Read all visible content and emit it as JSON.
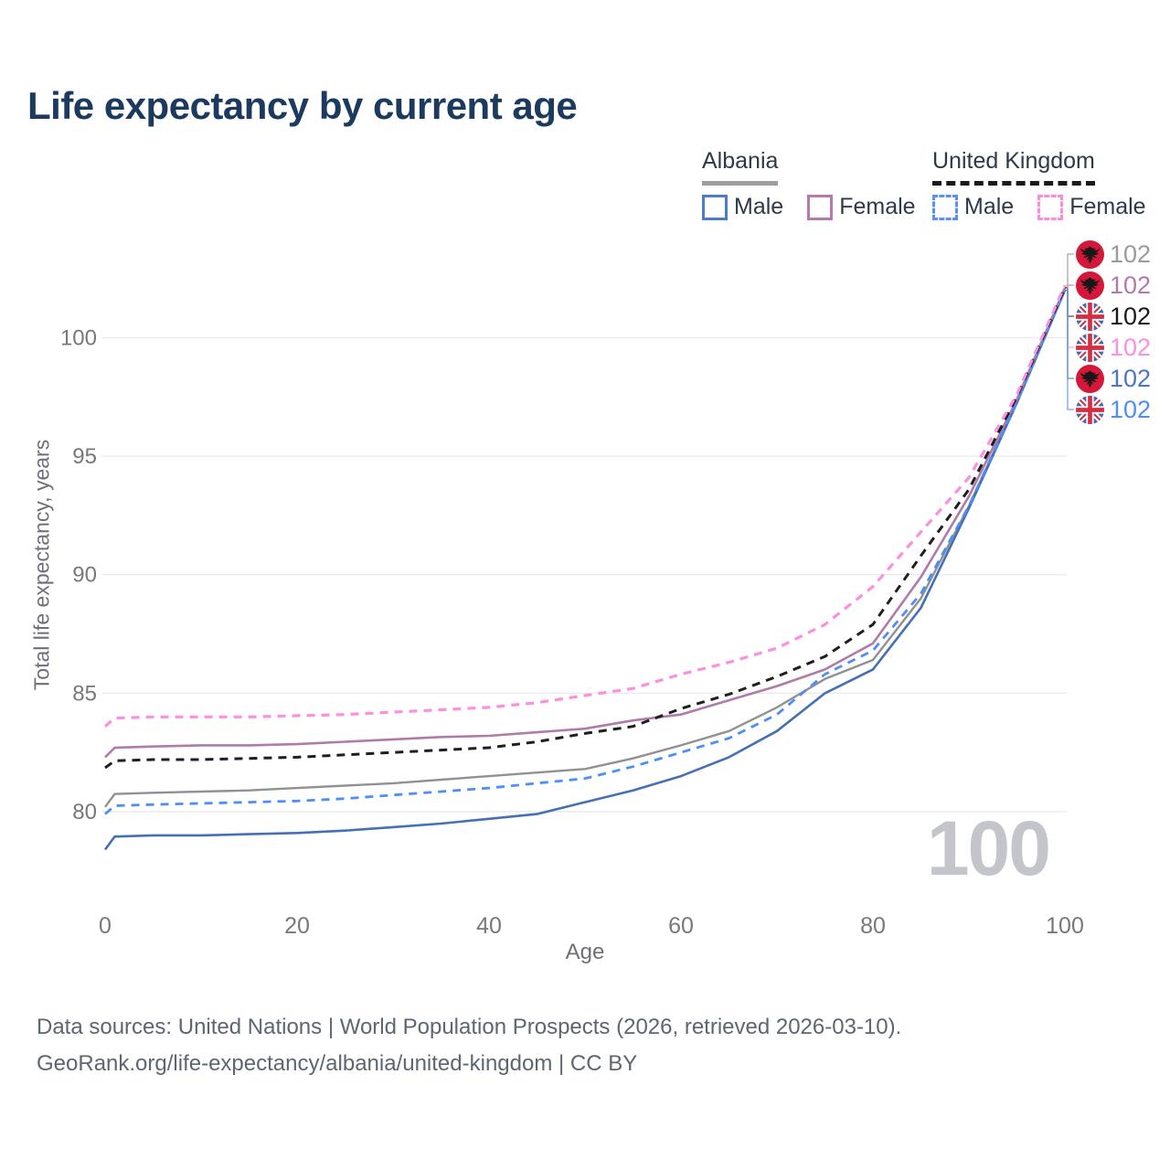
{
  "title": "Life expectancy by current age",
  "legend": {
    "groups": [
      {
        "label": "Albania",
        "line_style": "solid",
        "line_color": "#9e9e9e",
        "items": [
          {
            "label": "Male",
            "color": "#4a7cc7",
            "dashed": false
          },
          {
            "label": "Female",
            "color": "#b878ab",
            "dashed": false
          }
        ]
      },
      {
        "label": "United Kingdom",
        "line_style": "dashed",
        "line_color": "#1a1a1a",
        "items": [
          {
            "label": "Male",
            "color": "#5b8ff5",
            "dashed": true
          },
          {
            "label": "Female",
            "color": "#fb8ae1",
            "dashed": true
          }
        ]
      }
    ]
  },
  "chart_data": {
    "type": "line",
    "title": "Life expectancy by current age",
    "xlabel": "Age",
    "ylabel": "Total life expectancy, years",
    "x_ticks": [
      0,
      20,
      40,
      60,
      80,
      100
    ],
    "y_ticks": [
      80,
      85,
      90,
      95,
      100
    ],
    "xlim": [
      0,
      100
    ],
    "ylim": [
      77.5,
      102.5
    ],
    "grid": "horizontal",
    "x": [
      0,
      1,
      5,
      10,
      15,
      20,
      25,
      30,
      35,
      40,
      45,
      50,
      55,
      60,
      65,
      70,
      75,
      80,
      85,
      90,
      95,
      100
    ],
    "series": [
      {
        "name": "Albania (all)",
        "color": "#919191",
        "dash": "solid",
        "width": 2.4,
        "values": [
          80.2,
          80.75,
          80.8,
          80.85,
          80.9,
          81.0,
          81.1,
          81.2,
          81.35,
          81.5,
          81.65,
          81.8,
          82.25,
          82.8,
          83.4,
          84.4,
          85.6,
          86.4,
          89.0,
          92.9,
          97.3,
          102.0
        ]
      },
      {
        "name": "Albania Female",
        "color": "#b07ba8",
        "dash": "solid",
        "width": 2.6,
        "values": [
          82.3,
          82.7,
          82.75,
          82.8,
          82.8,
          82.85,
          82.95,
          83.05,
          83.15,
          83.2,
          83.35,
          83.5,
          83.85,
          84.1,
          84.7,
          85.3,
          86.0,
          87.1,
          89.9,
          93.3,
          97.4,
          102.1
        ]
      },
      {
        "name": "United Kingdom (all)",
        "color": "#1f1f1f",
        "dash": "dashed",
        "width": 3,
        "values": [
          81.85,
          82.15,
          82.2,
          82.2,
          82.25,
          82.3,
          82.4,
          82.5,
          82.6,
          82.7,
          82.95,
          83.3,
          83.6,
          84.35,
          84.95,
          85.7,
          86.55,
          87.9,
          90.8,
          93.6,
          97.5,
          102.1
        ]
      },
      {
        "name": "United Kingdom Female",
        "color": "#fb8fe0",
        "dash": "dashed",
        "width": 3.2,
        "values": [
          83.6,
          83.95,
          84.0,
          84.0,
          84.0,
          84.05,
          84.1,
          84.2,
          84.3,
          84.4,
          84.6,
          84.9,
          85.2,
          85.8,
          86.3,
          86.9,
          87.9,
          89.5,
          91.8,
          94.1,
          97.6,
          102.2
        ]
      },
      {
        "name": "Albania Male",
        "color": "#4470b5",
        "dash": "solid",
        "width": 2.6,
        "values": [
          78.4,
          78.95,
          79.0,
          79.0,
          79.05,
          79.1,
          79.2,
          79.35,
          79.5,
          79.7,
          79.9,
          80.4,
          80.9,
          81.5,
          82.3,
          83.4,
          85.0,
          86.0,
          88.6,
          92.8,
          97.25,
          102.0
        ]
      },
      {
        "name": "United Kingdom Male",
        "color": "#4d8ef7",
        "dash": "dashed",
        "width": 2.8,
        "values": [
          79.9,
          80.25,
          80.3,
          80.35,
          80.4,
          80.45,
          80.55,
          80.7,
          80.85,
          81.0,
          81.2,
          81.4,
          81.9,
          82.5,
          83.1,
          84.1,
          85.8,
          86.8,
          89.2,
          92.9,
          97.3,
          102.0
        ]
      }
    ]
  },
  "end_labels": [
    {
      "flag": "albania",
      "value": "102",
      "color": "#9b9b9b"
    },
    {
      "flag": "albania",
      "value": "102",
      "color": "#b07ba8"
    },
    {
      "flag": "uk",
      "value": "102",
      "color": "#1a1a1a"
    },
    {
      "flag": "uk",
      "value": "102",
      "color": "#fb8fe0"
    },
    {
      "flag": "albania",
      "value": "102",
      "color": "#4a77c4"
    },
    {
      "flag": "uk",
      "value": "102",
      "color": "#4d8ef7"
    }
  ],
  "watermark": "100",
  "footer": {
    "line1": "Data sources: United Nations | World Population Prospects (2026, retrieved 2026-03-10).",
    "line2": "GeoRank.org/life-expectancy/albania/united-kingdom | CC BY"
  }
}
